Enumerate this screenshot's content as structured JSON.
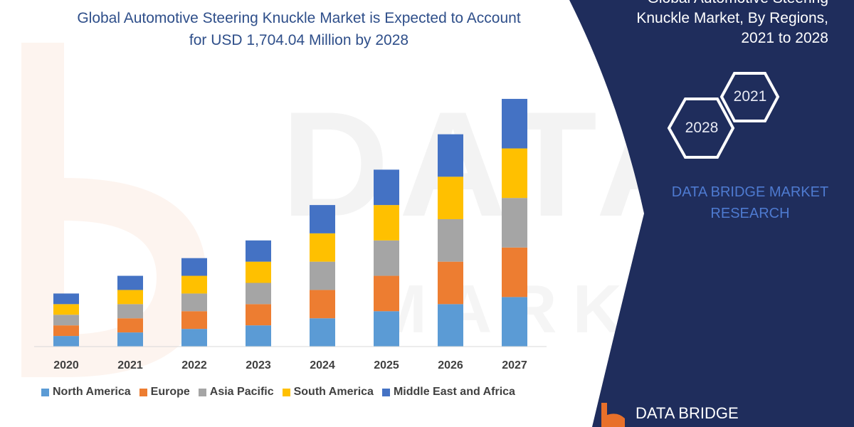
{
  "chart_data": {
    "type": "bar",
    "stacked": true,
    "title": "Global Automotive Steering Knuckle Market is Expected to Account for USD 1,704.04 Million by 2028",
    "title_lines": [
      "Global Automotive Steering Knuckle Market is Expected to Account",
      "for USD 1,704.04 Million by 2028"
    ],
    "categories": [
      "2020",
      "2021",
      "2022",
      "2023",
      "2024",
      "2025",
      "2026",
      "2027"
    ],
    "series": [
      {
        "name": "North America",
        "color": "#5b9bd5",
        "values": [
          3,
          4,
          5,
          6,
          8,
          10,
          12,
          14
        ]
      },
      {
        "name": "Europe",
        "color": "#ed7d31",
        "values": [
          3,
          4,
          5,
          6,
          8,
          10,
          12,
          14
        ]
      },
      {
        "name": "Asia Pacific",
        "color": "#a5a5a5",
        "values": [
          3,
          4,
          5,
          6,
          8,
          10,
          12,
          14
        ]
      },
      {
        "name": "South America",
        "color": "#ffc000",
        "values": [
          3,
          4,
          5,
          6,
          8,
          10,
          12,
          14
        ]
      },
      {
        "name": "Middle East and Africa",
        "color": "#4472c4",
        "values": [
          3,
          4,
          5,
          6,
          8,
          10,
          12,
          14
        ]
      }
    ],
    "ylim": [
      0,
      72
    ],
    "xlabel": "",
    "ylabel": "",
    "grid": false,
    "legend_position": "bottom"
  },
  "panel": {
    "title_lines": [
      "Global Automotive Steering",
      "Knuckle Market, By Regions,",
      "2021 to 2028"
    ],
    "hex_start": "2021",
    "hex_end": "2028",
    "brand_lines": [
      "DATA BRIDGE MARKET",
      "RESEARCH"
    ],
    "footer_logo": "DATA BRIDGE",
    "color_dark": "#1f2d5c",
    "color_brand": "#4e7ad0",
    "color_logo_orange": "#e8702a"
  },
  "watermark": {
    "main": "DATABRIDGE",
    "sub": "MARKETRESEARCH"
  }
}
